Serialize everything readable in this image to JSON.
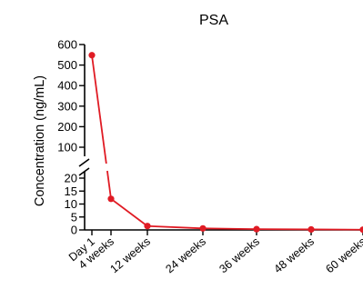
{
  "chart_data": {
    "type": "line",
    "title": "PSA",
    "xlabel": "",
    "ylabel": "Concentration (ng/mL)",
    "x": [
      "Day 1",
      "4 weeks",
      "12 weeks",
      "24 weeks",
      "36 weeks",
      "48 weeks",
      "60 weeks"
    ],
    "series": [
      {
        "values": [
          548,
          12,
          1.5,
          0.6,
          0.3,
          0.2,
          0.1
        ]
      }
    ],
    "y_axis_segments": [
      {
        "ylim": [
          0,
          20
        ],
        "ticks": [
          0,
          5,
          10,
          15,
          20
        ]
      },
      {
        "ylim": [
          100,
          600
        ],
        "ticks": [
          100,
          200,
          300,
          400,
          500,
          600
        ]
      }
    ],
    "broken_axis": true,
    "grid": false,
    "legend": "none",
    "colors": {
      "series": "#e01b24",
      "axis": "#000000"
    }
  }
}
